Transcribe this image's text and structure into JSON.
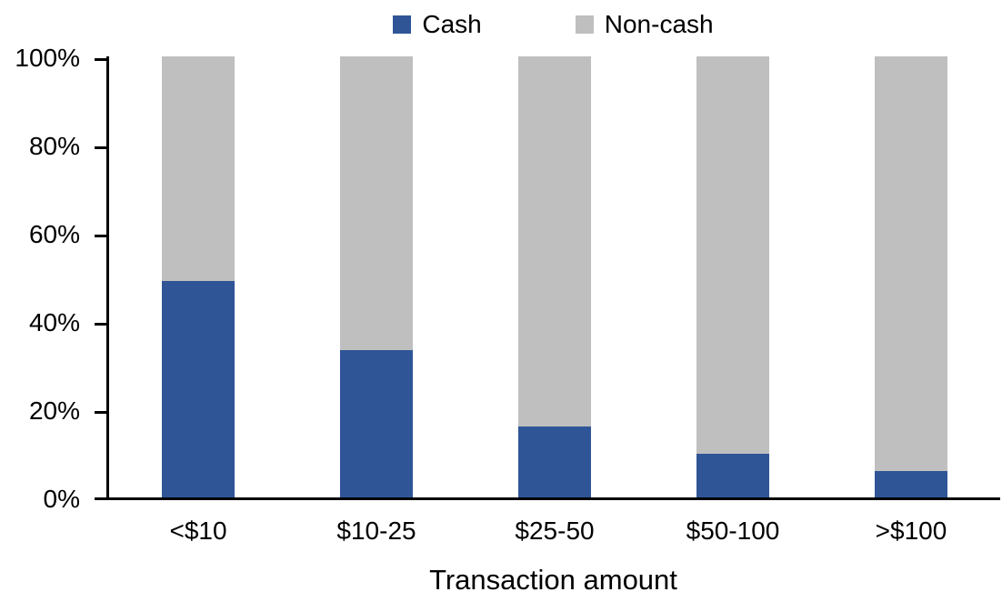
{
  "chart_data": {
    "type": "bar",
    "subtype": "stacked-100-percent",
    "categories": [
      "<$10",
      "$10-25",
      "$25-50",
      "$50-100",
      ">$100"
    ],
    "series": [
      {
        "name": "Cash",
        "color": "#2F5597",
        "values": [
          49,
          33.5,
          16,
          10,
          6
        ]
      },
      {
        "name": "Non-cash",
        "color": "#BFBFBF",
        "values": [
          51,
          66.5,
          84,
          90,
          94
        ]
      }
    ],
    "title": "",
    "xlabel": "Transaction amount",
    "ylabel": "",
    "ylim": [
      0,
      100
    ],
    "ytick_step": 20,
    "ytick_labels": [
      "0%",
      "20%",
      "40%",
      "60%",
      "80%",
      "100%"
    ],
    "legend_position": "top-center",
    "grid": false,
    "axis_color": "#000000",
    "text_color": "#000000",
    "background_color": "#FFFFFF"
  }
}
